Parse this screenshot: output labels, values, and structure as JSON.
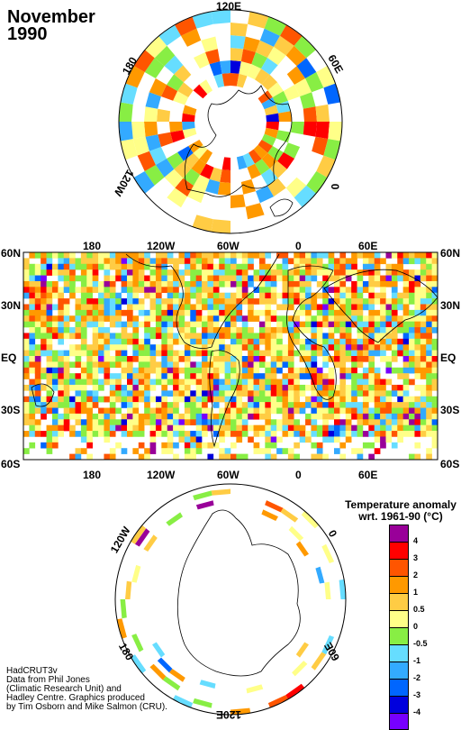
{
  "title": {
    "line1": "November",
    "line2": "1990"
  },
  "north_polar_map": {
    "labels": {
      "top": "120E",
      "right": "60E",
      "bottom_right": "0",
      "left": "180",
      "bottom_left": "120W"
    }
  },
  "world_map": {
    "top_longitudes": [
      "180",
      "120W",
      "60W",
      "0",
      "60E"
    ],
    "bottom_longitudes": [
      "180",
      "120W",
      "60W",
      "0",
      "60E"
    ],
    "left_latitudes": [
      "60N",
      "30N",
      "EQ",
      "30S",
      "60S"
    ],
    "right_latitudes": [
      "60N",
      "30N",
      "EQ",
      "30S",
      "60S"
    ]
  },
  "south_polar_map": {
    "labels": {
      "top_left": "120W",
      "top_right": "0",
      "bottom_left": "180",
      "bottom_right": "60E",
      "bottom": "120E"
    }
  },
  "legend": {
    "title_line1": "Temperature anomaly",
    "title_line2": "wrt. 1961-90 (°C)",
    "ticks": [
      "4",
      "3",
      "2",
      "1",
      "0.5",
      "0",
      "-0.5",
      "-1",
      "-2",
      "-3",
      "-4"
    ],
    "colors": [
      "#990099",
      "#ff0000",
      "#ff5500",
      "#ff9900",
      "#ffcc44",
      "#ffff88",
      "#88ee44",
      "#66ddff",
      "#33aaff",
      "#0066ff",
      "#0000dd",
      "#7700ff"
    ]
  },
  "credits": {
    "line1": "HadCRUT3v",
    "line2": "Data from Phil Jones",
    "line3": "(Climatic Research Unit) and",
    "line4": "Hadley Centre.  Graphics produced",
    "line5": "by Tim Osborn and Mike Salmon (CRU)."
  }
}
